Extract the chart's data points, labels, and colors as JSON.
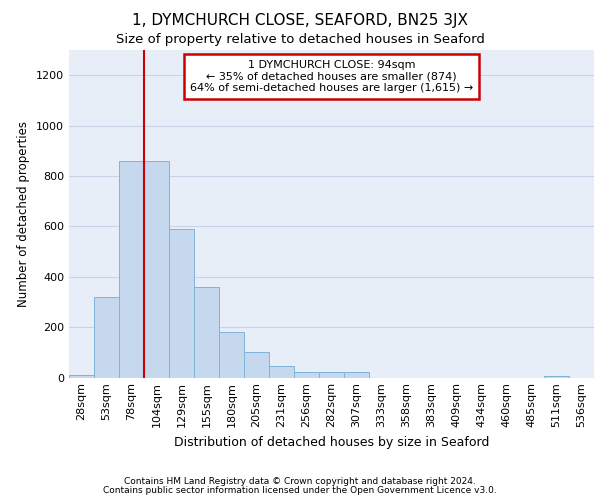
{
  "title1": "1, DYMCHURCH CLOSE, SEAFORD, BN25 3JX",
  "title2": "Size of property relative to detached houses in Seaford",
  "xlabel": "Distribution of detached houses by size in Seaford",
  "ylabel": "Number of detached properties",
  "footnote1": "Contains HM Land Registry data © Crown copyright and database right 2024.",
  "footnote2": "Contains public sector information licensed under the Open Government Licence v3.0.",
  "annotation_line1": "1 DYMCHURCH CLOSE: 94sqm",
  "annotation_line2": "← 35% of detached houses are smaller (874)",
  "annotation_line3": "64% of semi-detached houses are larger (1,615) →",
  "bar_color": "#c5d8ee",
  "bar_edge_color": "#7fb3d9",
  "vline_color": "#cc0000",
  "grid_color": "#c8d4e8",
  "background_color": "#e8eef8",
  "categories": [
    "28sqm",
    "53sqm",
    "78sqm",
    "104sqm",
    "129sqm",
    "155sqm",
    "180sqm",
    "205sqm",
    "231sqm",
    "256sqm",
    "282sqm",
    "307sqm",
    "333sqm",
    "358sqm",
    "383sqm",
    "409sqm",
    "434sqm",
    "460sqm",
    "485sqm",
    "511sqm",
    "536sqm"
  ],
  "values": [
    10,
    320,
    860,
    860,
    590,
    360,
    180,
    100,
    45,
    20,
    20,
    20,
    0,
    0,
    0,
    0,
    0,
    0,
    0,
    5,
    0
  ],
  "ylim": [
    0,
    1300
  ],
  "yticks": [
    0,
    200,
    400,
    600,
    800,
    1000,
    1200
  ],
  "vline_x": 3.0,
  "ann_box_color": "#cc0000",
  "title1_fontsize": 11,
  "title2_fontsize": 9.5,
  "xlabel_fontsize": 9,
  "ylabel_fontsize": 8.5,
  "tick_fontsize": 8,
  "ann_fontsize": 8,
  "footnote_fontsize": 6.5
}
